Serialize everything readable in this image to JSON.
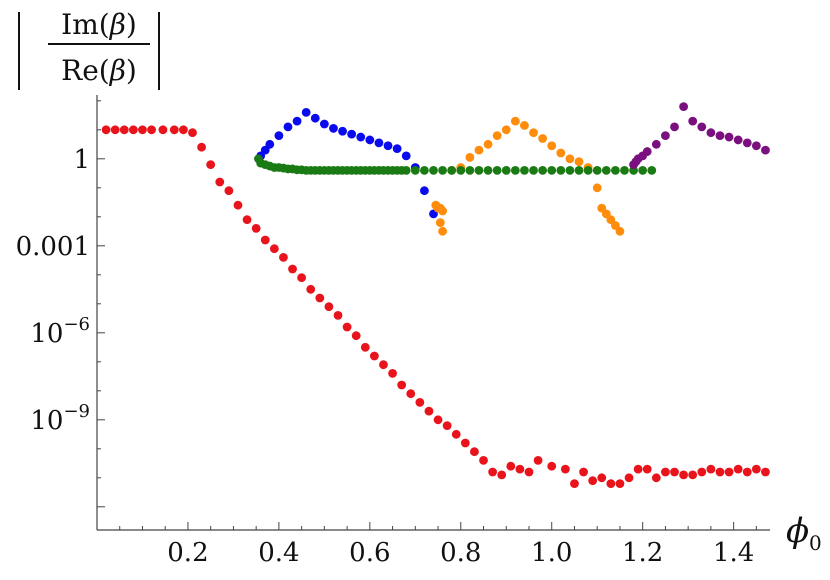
{
  "chart_data": {
    "type": "scatter",
    "title": "",
    "xlabel": "φ0",
    "ylabel": "| Im(β) / Re(β) |",
    "y_scale": "log",
    "xlim": [
      0.0,
      1.48
    ],
    "ylim_log10": [
      -12.8,
      2.2
    ],
    "x_ticks": [
      {
        "value": 0.2,
        "label": "0.2"
      },
      {
        "value": 0.4,
        "label": "0.4"
      },
      {
        "value": 0.6,
        "label": "0.6"
      },
      {
        "value": 0.8,
        "label": "0.8"
      },
      {
        "value": 1.0,
        "label": "1.0"
      },
      {
        "value": 1.2,
        "label": "1.2"
      },
      {
        "value": 1.4,
        "label": "1.4"
      }
    ],
    "y_ticks": [
      {
        "log10": 0,
        "label": "1"
      },
      {
        "log10": -3,
        "label": "0.001"
      },
      {
        "log10": -6,
        "base": "10",
        "exp": "−6"
      },
      {
        "log10": -9,
        "base": "10",
        "exp": "−9"
      }
    ],
    "series": [
      {
        "color": "#e8131b",
        "x": [
          0.02,
          0.04,
          0.06,
          0.08,
          0.1,
          0.12,
          0.145,
          0.17,
          0.19,
          0.21,
          0.23,
          0.25,
          0.27,
          0.29,
          0.31,
          0.33,
          0.35,
          0.37,
          0.39,
          0.41,
          0.43,
          0.45,
          0.47,
          0.49,
          0.51,
          0.53,
          0.55,
          0.57,
          0.59,
          0.61,
          0.63,
          0.65,
          0.67,
          0.69,
          0.71,
          0.73,
          0.75,
          0.77,
          0.79,
          0.81,
          0.83,
          0.85,
          0.87,
          0.89,
          0.91,
          0.93,
          0.95,
          0.97,
          1.0,
          1.03,
          1.05,
          1.07,
          1.09,
          1.11,
          1.13,
          1.15,
          1.17,
          1.19,
          1.21,
          1.23,
          1.25,
          1.27,
          1.29,
          1.31,
          1.33,
          1.35,
          1.37,
          1.39,
          1.41,
          1.43,
          1.45,
          1.47
        ],
        "y": [
          1.0,
          1.0,
          1.0,
          1.0,
          1.0,
          1.0,
          1.0,
          1.0,
          1.0,
          0.9,
          0.4,
          -0.2,
          -0.8,
          -1.1,
          -1.6,
          -2.1,
          -2.4,
          -2.8,
          -3.1,
          -3.4,
          -3.8,
          -4.1,
          -4.5,
          -4.8,
          -5.1,
          -5.4,
          -5.8,
          -6.1,
          -6.5,
          -6.8,
          -7.1,
          -7.4,
          -7.8,
          -8.1,
          -8.4,
          -8.7,
          -9.0,
          -9.2,
          -9.5,
          -9.8,
          -10.1,
          -10.4,
          -10.8,
          -10.9,
          -10.6,
          -10.7,
          -10.8,
          -10.4,
          -10.6,
          -10.7,
          -11.2,
          -10.8,
          -11.1,
          -11.0,
          -11.2,
          -11.2,
          -11.0,
          -10.7,
          -10.7,
          -11.0,
          -10.8,
          -10.8,
          -10.9,
          -10.9,
          -10.8,
          -10.7,
          -10.8,
          -10.8,
          -10.7,
          -10.8,
          -10.7,
          -10.8
        ]
      },
      {
        "color": "#0a0aee",
        "x": [
          0.36,
          0.37,
          0.38,
          0.4,
          0.42,
          0.44,
          0.46,
          0.48,
          0.5,
          0.52,
          0.54,
          0.56,
          0.58,
          0.6,
          0.62,
          0.64,
          0.66,
          0.68,
          0.7,
          0.72,
          0.74
        ],
        "y": [
          0.1,
          0.3,
          0.5,
          0.8,
          1.1,
          1.3,
          1.6,
          1.4,
          1.2,
          1.05,
          0.95,
          0.85,
          0.75,
          0.65,
          0.55,
          0.45,
          0.35,
          0.1,
          -0.3,
          -1.1,
          -1.9
        ]
      },
      {
        "color": "#ff8c0a",
        "x": [
          0.745,
          0.75,
          0.755,
          0.755,
          0.76,
          0.76,
          0.78,
          0.8,
          0.82,
          0.84,
          0.86,
          0.88,
          0.9,
          0.92,
          0.94,
          0.96,
          0.98,
          1.0,
          1.02,
          1.04,
          1.06,
          1.08,
          1.1,
          1.11,
          1.12,
          1.13,
          1.14,
          1.15
        ],
        "y": [
          -1.6,
          -1.7,
          -1.7,
          -2.2,
          -1.8,
          -2.5,
          -0.4,
          -0.3,
          0.05,
          0.3,
          0.5,
          0.8,
          1.0,
          1.3,
          1.15,
          0.9,
          0.7,
          0.45,
          0.2,
          0.0,
          -0.1,
          -0.3,
          -1.0,
          -1.7,
          -1.9,
          -2.1,
          -2.3,
          -2.5
        ]
      },
      {
        "color": "#1a7a14",
        "x": [
          0.355,
          0.36,
          0.37,
          0.38,
          0.39,
          0.4,
          0.41,
          0.42,
          0.43,
          0.44,
          0.45,
          0.46,
          0.47,
          0.48,
          0.49,
          0.5,
          0.51,
          0.52,
          0.53,
          0.54,
          0.55,
          0.56,
          0.57,
          0.58,
          0.59,
          0.6,
          0.61,
          0.62,
          0.63,
          0.64,
          0.65,
          0.66,
          0.67,
          0.68,
          0.7,
          0.72,
          0.74,
          0.76,
          0.78,
          0.8,
          0.82,
          0.84,
          0.86,
          0.88,
          0.9,
          0.92,
          0.94,
          0.96,
          0.98,
          1.0,
          1.02,
          1.04,
          1.06,
          1.08,
          1.1,
          1.12,
          1.14,
          1.16,
          1.18,
          1.2,
          1.22
        ],
        "y": [
          0.0,
          -0.15,
          -0.2,
          -0.25,
          -0.3,
          -0.3,
          -0.32,
          -0.35,
          -0.35,
          -0.38,
          -0.38,
          -0.4,
          -0.4,
          -0.4,
          -0.4,
          -0.4,
          -0.4,
          -0.4,
          -0.4,
          -0.4,
          -0.4,
          -0.4,
          -0.4,
          -0.4,
          -0.4,
          -0.4,
          -0.4,
          -0.4,
          -0.4,
          -0.4,
          -0.4,
          -0.4,
          -0.4,
          -0.4,
          -0.4,
          -0.4,
          -0.4,
          -0.4,
          -0.4,
          -0.4,
          -0.4,
          -0.4,
          -0.4,
          -0.4,
          -0.4,
          -0.4,
          -0.4,
          -0.4,
          -0.4,
          -0.4,
          -0.4,
          -0.4,
          -0.4,
          -0.4,
          -0.4,
          -0.4,
          -0.4,
          -0.4,
          -0.4,
          -0.4,
          -0.4
        ]
      },
      {
        "color": "#7a1080",
        "x": [
          1.18,
          1.185,
          1.19,
          1.2,
          1.21,
          1.23,
          1.25,
          1.27,
          1.29,
          1.31,
          1.33,
          1.35,
          1.37,
          1.39,
          1.41,
          1.43,
          1.45,
          1.47
        ],
        "y": [
          -0.2,
          -0.1,
          0.0,
          0.1,
          0.25,
          0.5,
          0.8,
          1.1,
          1.8,
          1.3,
          1.1,
          0.9,
          0.8,
          0.75,
          0.65,
          0.55,
          0.45,
          0.3
        ]
      }
    ]
  }
}
